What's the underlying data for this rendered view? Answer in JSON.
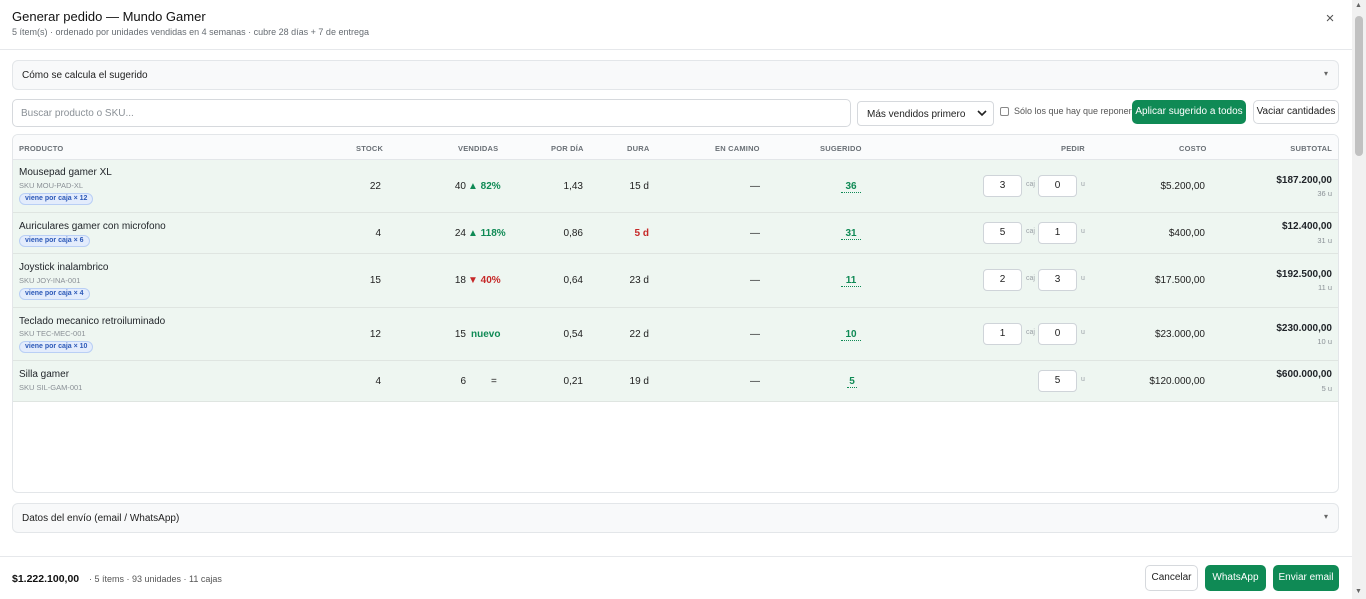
{
  "header": {
    "title": "Generar pedido — Mundo Gamer",
    "subtitle": "5 ítem(s) · ordenado por unidades vendidas en 4 semanas · cubre 28 días + 7 de entrega",
    "close_label": "×"
  },
  "calc_panel": {
    "label": "Cómo se calcula el sugerido",
    "caret": "▾"
  },
  "toolbar": {
    "search_placeholder": "Buscar producto o SKU...",
    "sort_value": "Más vendidos primero",
    "only_restock_label": "Sólo los que hay que reponer",
    "apply_label": "Aplicar sugerido a todos",
    "clear_label": "Vaciar cantidades"
  },
  "table": {
    "columns": {
      "producto": "PRODUCTO",
      "stock": "STOCK",
      "vendidas": "VENDIDAS",
      "por_dia": "POR DÍA",
      "dura": "DURA",
      "en_camino": "EN CAMINO",
      "sugerido": "SUGERIDO",
      "pedir": "PEDIR",
      "costo": "COSTO",
      "subtotal": "SUBTOTAL"
    },
    "unit_caj": "caj",
    "unit_u": "u",
    "rows": [
      {
        "name": "Mousepad gamer XL",
        "sku": "SKU MOU-PAD-XL",
        "badge": "viene por caja × 12",
        "stock": "22",
        "sold": "40",
        "trend": "▲ 82%",
        "trend_kind": "up",
        "per_day": "1,43",
        "lasts": "15 d",
        "lasts_alert": false,
        "in_transit": "—",
        "suggested": "36",
        "boxes": "3",
        "units": "0",
        "cost": "$5.200,00",
        "subtotal": "$187.200,00",
        "subtotal_units": "36 u"
      },
      {
        "name": "Auriculares gamer con microfono",
        "sku": "",
        "badge": "viene por caja × 6",
        "stock": "4",
        "sold": "24",
        "trend": "▲ 118%",
        "trend_kind": "up",
        "per_day": "0,86",
        "lasts": "5 d",
        "lasts_alert": true,
        "in_transit": "—",
        "suggested": "31",
        "boxes": "5",
        "units": "1",
        "cost": "$400,00",
        "subtotal": "$12.400,00",
        "subtotal_units": "31 u"
      },
      {
        "name": "Joystick inalambrico",
        "sku": "SKU JOY-INA-001",
        "badge": "viene por caja × 4",
        "stock": "15",
        "sold": "18",
        "trend": "▼ 40%",
        "trend_kind": "down",
        "per_day": "0,64",
        "lasts": "23 d",
        "lasts_alert": false,
        "in_transit": "—",
        "suggested": "11",
        "boxes": "2",
        "units": "3",
        "cost": "$17.500,00",
        "subtotal": "$192.500,00",
        "subtotal_units": "11 u"
      },
      {
        "name": "Teclado mecanico retroiluminado",
        "sku": "SKU TEC-MEC-001",
        "badge": "viene por caja × 10",
        "stock": "12",
        "sold": "15",
        "trend": "nuevo",
        "trend_kind": "up",
        "per_day": "0,54",
        "lasts": "22 d",
        "lasts_alert": false,
        "in_transit": "—",
        "suggested": "10",
        "boxes": "1",
        "units": "0",
        "cost": "$23.000,00",
        "subtotal": "$230.000,00",
        "subtotal_units": "10 u"
      },
      {
        "name": "Silla gamer",
        "sku": "SKU SIL-GAM-001",
        "badge": "",
        "stock": "4",
        "sold": "6",
        "trend": "=",
        "trend_kind": "flat",
        "per_day": "0,21",
        "lasts": "19 d",
        "lasts_alert": false,
        "in_transit": "—",
        "suggested": "5",
        "boxes": "",
        "units": "5",
        "cost": "$120.000,00",
        "subtotal": "$600.000,00",
        "subtotal_units": "5 u"
      }
    ]
  },
  "shipping_panel": {
    "label": "Datos del envío (email / WhatsApp)",
    "caret": "▾"
  },
  "footer": {
    "total": "$1.222.100,00",
    "meta": "· 5 ítems · 93 unidades · 11 cajas",
    "cancel_label": "Cancelar",
    "whatsapp_label": "WhatsApp",
    "email_label": "Enviar email"
  },
  "scrollbar": {
    "up_arrow": "▲",
    "down_arrow": "▼"
  }
}
